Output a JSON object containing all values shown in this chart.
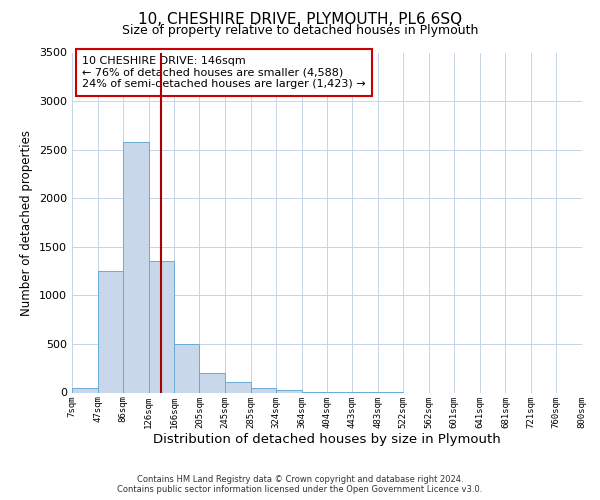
{
  "title": "10, CHESHIRE DRIVE, PLYMOUTH, PL6 6SQ",
  "subtitle": "Size of property relative to detached houses in Plymouth",
  "xlabel": "Distribution of detached houses by size in Plymouth",
  "ylabel": "Number of detached properties",
  "bar_edges": [
    7,
    47,
    86,
    126,
    166,
    205,
    245,
    285,
    324,
    364,
    404,
    443,
    483,
    522,
    562,
    601,
    641,
    681,
    721,
    760,
    800
  ],
  "bar_heights": [
    50,
    1250,
    2580,
    1350,
    500,
    200,
    110,
    50,
    30,
    10,
    5,
    2,
    1,
    0,
    0,
    0,
    0,
    0,
    0,
    0
  ],
  "bar_color": "#c8d8ea",
  "bar_edgecolor": "#6aaad4",
  "vline_x": 146,
  "vline_color": "#aa0000",
  "ylim": [
    0,
    3500
  ],
  "xlim": [
    7,
    800
  ],
  "annotation_title": "10 CHESHIRE DRIVE: 146sqm",
  "annotation_line1": "← 76% of detached houses are smaller (4,588)",
  "annotation_line2": "24% of semi-detached houses are larger (1,423) →",
  "annotation_box_color": "#ffffff",
  "annotation_box_edgecolor": "#cc0000",
  "tick_labels": [
    "7sqm",
    "47sqm",
    "86sqm",
    "126sqm",
    "166sqm",
    "205sqm",
    "245sqm",
    "285sqm",
    "324sqm",
    "364sqm",
    "404sqm",
    "443sqm",
    "483sqm",
    "522sqm",
    "562sqm",
    "601sqm",
    "641sqm",
    "681sqm",
    "721sqm",
    "760sqm",
    "800sqm"
  ],
  "footer_line1": "Contains HM Land Registry data © Crown copyright and database right 2024.",
  "footer_line2": "Contains public sector information licensed under the Open Government Licence v3.0.",
  "background_color": "#ffffff",
  "grid_color": "#c5d5e5",
  "title_fontsize": 11,
  "subtitle_fontsize": 9,
  "ylabel_fontsize": 8.5,
  "xlabel_fontsize": 9.5
}
